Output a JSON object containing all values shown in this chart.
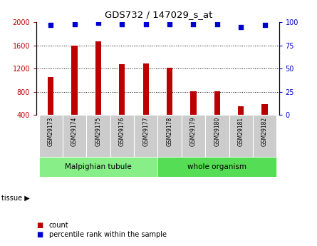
{
  "title": "GDS732 / 147029_s_at",
  "samples": [
    "GSM29173",
    "GSM29174",
    "GSM29175",
    "GSM29176",
    "GSM29177",
    "GSM29178",
    "GSM29179",
    "GSM29180",
    "GSM29181",
    "GSM29182"
  ],
  "counts": [
    1050,
    1600,
    1670,
    1270,
    1290,
    1210,
    810,
    810,
    550,
    590
  ],
  "percentiles": [
    97,
    98,
    99,
    98,
    98,
    98,
    98,
    98,
    95,
    97
  ],
  "bar_color": "#bb0000",
  "dot_color": "#0000cc",
  "ylim_left": [
    400,
    2000
  ],
  "ylim_right": [
    0,
    100
  ],
  "yticks_left": [
    400,
    800,
    1200,
    1600,
    2000
  ],
  "yticks_right": [
    0,
    25,
    50,
    75,
    100
  ],
  "grid_ticks": [
    800,
    1200,
    1600
  ],
  "tissue_groups": [
    {
      "label": "Malpighian tubule",
      "indices": [
        0,
        4
      ],
      "color": "#88ee88"
    },
    {
      "label": "whole organism",
      "indices": [
        5,
        9
      ],
      "color": "#55dd55"
    }
  ],
  "tissue_label": "tissue",
  "legend_count_label": "count",
  "legend_pct_label": "percentile rank within the sample",
  "bar_width": 0.25,
  "tick_box_color": "#cccccc",
  "background_color": "#ffffff"
}
